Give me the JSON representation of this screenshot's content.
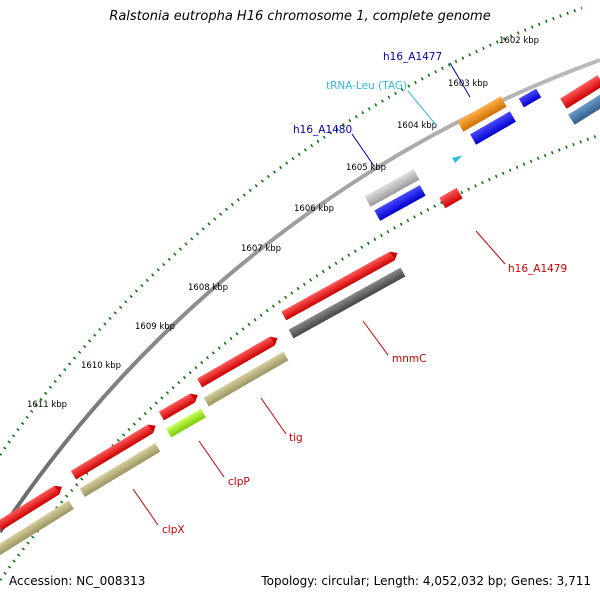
{
  "title": "Ralstonia eutropha H16 chromosome 1, complete genome",
  "footer": {
    "accession": "Accession: NC_008313",
    "summary": "Topology: circular; Length: 4,052,032 bp; Genes: 3,711"
  },
  "ticks": [
    "1602 kbp",
    "1603 kbp",
    "1604 kbp",
    "1605 kbp",
    "1606 kbp",
    "1607 kbp",
    "1608 kbp",
    "1609 kbp",
    "1610 kbp",
    "1611 kbp"
  ],
  "gene_labels": [
    {
      "text": "h16_A1477",
      "color": "#0000aa"
    },
    {
      "text": "tRNA-Leu (TAG)",
      "color": "#33bbdd"
    },
    {
      "text": "h16_A1480",
      "color": "#0000aa"
    },
    {
      "text": "h16_A1479",
      "color": "#cc0000"
    },
    {
      "text": "mnmC",
      "color": "#cc0000"
    },
    {
      "text": "tig",
      "color": "#cc0000"
    },
    {
      "text": "clpP",
      "color": "#cc0000"
    },
    {
      "text": "clpX",
      "color": "#cc0000"
    }
  ],
  "legend_colors": {
    "cds": "#ee0000",
    "rna": "#2222ee",
    "trna": "#33bbdd",
    "cog_gray": "#555555",
    "cog_olive": "#b7b07a",
    "cog_orange": "#f08a00",
    "cog_lightgray": "#bbbbbb",
    "cog_lime": "#a6ee22",
    "cog_steel": "#4477aa"
  }
}
